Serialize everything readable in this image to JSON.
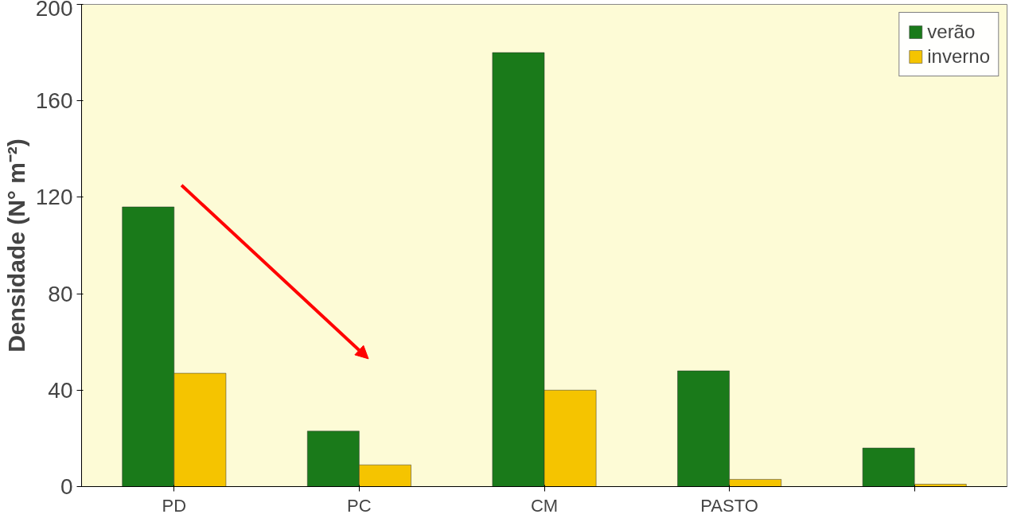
{
  "chart_data": {
    "type": "bar",
    "ylabel": "Densidade (N° m⁻²)",
    "categories": [
      "PD",
      "PC",
      "CM",
      "PASTO",
      null
    ],
    "series": [
      {
        "name": "verão",
        "color": "#1a7a1a",
        "values": [
          116,
          23,
          180,
          48,
          16
        ]
      },
      {
        "name": "inverno",
        "color": "#f5c400",
        "values": [
          47,
          9,
          40,
          3,
          1
        ]
      }
    ],
    "ylim": [
      0,
      200
    ],
    "yticks": [
      0,
      40,
      80,
      120,
      160,
      200
    ],
    "grid": false,
    "legend": "top right"
  }
}
